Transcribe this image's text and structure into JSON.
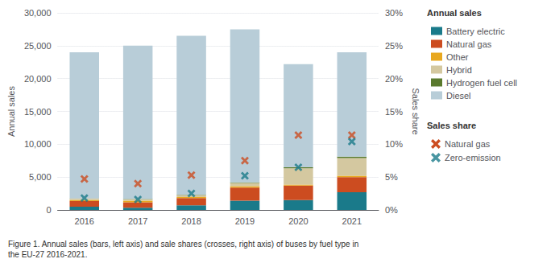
{
  "chart_data": {
    "type": "bar",
    "stacked": true,
    "grid": true,
    "categories": [
      "2016",
      "2017",
      "2018",
      "2019",
      "2020",
      "2021"
    ],
    "ylabel": "Annual sales",
    "y2label": "Sales share",
    "ylim": [
      0,
      30000
    ],
    "yticks": [
      0,
      {
        "value": 5000,
        "label": "5,000"
      },
      {
        "value": 10000,
        "label": "10,000"
      },
      {
        "value": 15000,
        "label": "15,000"
      },
      {
        "value": 20000,
        "label": "20,000"
      },
      {
        "value": 25000,
        "label": "25,000"
      },
      {
        "value": 30000,
        "label": "30,000"
      }
    ],
    "y2lim": [
      0,
      30
    ],
    "y2ticks": [
      {
        "value": 0,
        "label": "0%"
      },
      {
        "value": 5,
        "label": "5%"
      },
      {
        "value": 10,
        "label": "10%"
      },
      {
        "value": 15,
        "label": "15%"
      },
      {
        "value": 20,
        "label": "20%"
      },
      {
        "value": 25,
        "label": "25%"
      },
      {
        "value": 30,
        "label": "30%"
      }
    ],
    "legend_titles": [
      "Annual sales",
      "Sales share"
    ],
    "caption": "Figure 1. Annual sales (bars, left axis) and sale shares (crosses, right axis) of buses by fuel type in\nthe EU-27 2016-2021.",
    "series": [
      {
        "name": "Battery electric",
        "color": "#1a7a8a",
        "values": [
          500,
          350,
          700,
          1400,
          1500,
          2700
        ]
      },
      {
        "name": "Natural gas",
        "color": "#cc4c20",
        "values": [
          850,
          800,
          1100,
          2000,
          2200,
          2300
        ]
      },
      {
        "name": "Other",
        "color": "#e8a820",
        "values": [
          150,
          250,
          150,
          200,
          150,
          200
        ]
      },
      {
        "name": "Hybrid",
        "color": "#d4c8a0",
        "values": [
          200,
          200,
          300,
          500,
          2500,
          2700
        ]
      },
      {
        "name": "Hydrogen fuel cell",
        "color": "#5a7a2e",
        "values": [
          50,
          50,
          50,
          100,
          150,
          200
        ]
      },
      {
        "name": "Diesel",
        "color": "#b8cdd8",
        "values": [
          22250,
          23350,
          24200,
          23300,
          15700,
          15900
        ]
      },
      {
        "name": "Natural gas",
        "type": "scatter",
        "axis": "y2",
        "marker": "x",
        "color": "#cc4c20",
        "values": [
          4.7,
          4.0,
          5.3,
          7.5,
          11.4,
          11.4
        ]
      },
      {
        "name": "Zero-emission",
        "type": "scatter",
        "axis": "y2",
        "marker": "x",
        "color": "#1a7a8a",
        "values": [
          1.8,
          1.6,
          2.5,
          5.2,
          6.5,
          10.4
        ]
      }
    ]
  }
}
